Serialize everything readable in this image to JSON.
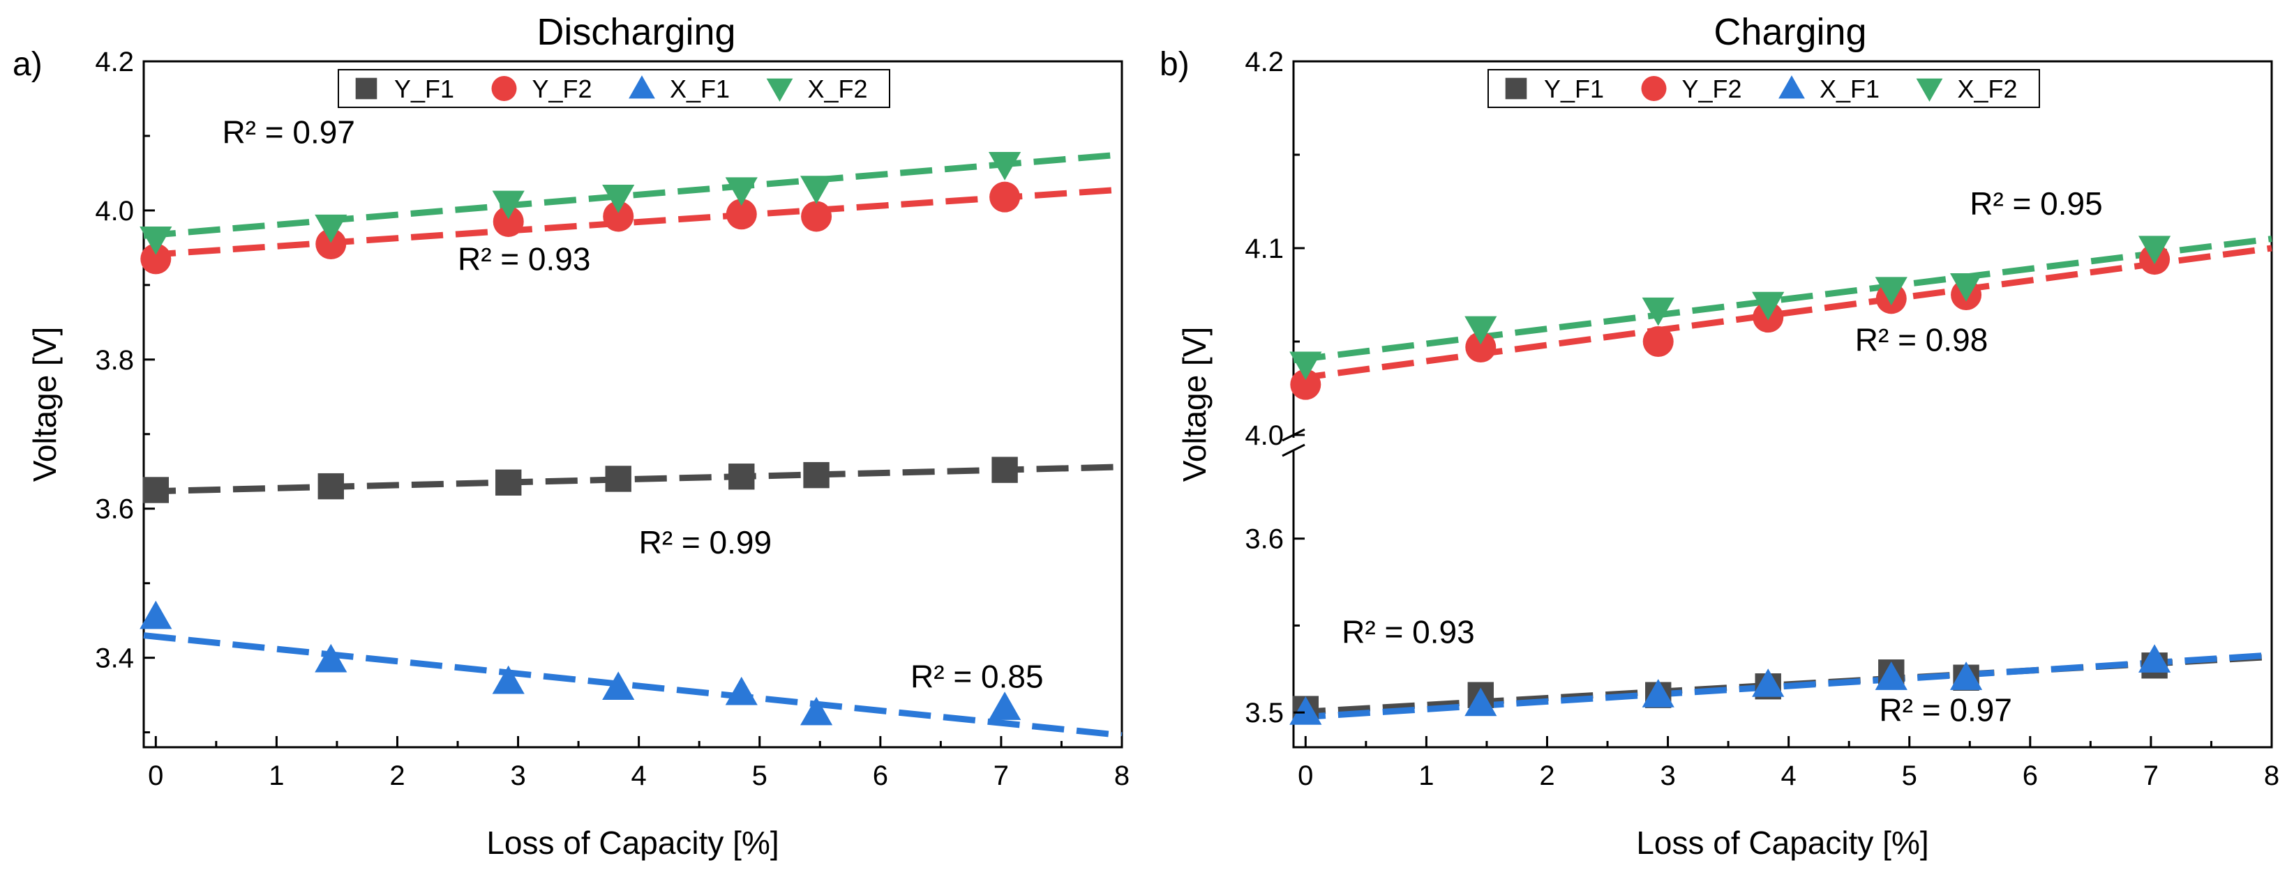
{
  "chart_data": [
    {
      "type": "scatter",
      "panel_label": "a)",
      "title": "Discharging",
      "xlabel": "Loss of Capacity [%]",
      "ylabel": "Voltage [V]",
      "xlim": [
        -0.1,
        8
      ],
      "ylim": [
        3.28,
        4.2
      ],
      "xticks": [
        0,
        1,
        2,
        3,
        4,
        5,
        6,
        7,
        8
      ],
      "xtick_labels": [
        "0",
        "1",
        "2",
        "3",
        "4",
        "5",
        "6",
        "7",
        "8"
      ],
      "yticks": [
        3.4,
        3.6,
        3.8,
        4.0,
        4.2
      ],
      "ytick_labels": [
        "3.4",
        "3.6",
        "3.8",
        "4.0",
        "4.2"
      ],
      "legend_position": "top-center",
      "series": [
        {
          "name": "Y_F1",
          "marker": "square",
          "color": "#4a4a4a",
          "x": [
            0,
            1.45,
            2.92,
            3.83,
            4.85,
            5.47,
            7.03
          ],
          "y": [
            3.625,
            3.63,
            3.635,
            3.64,
            3.643,
            3.645,
            3.652
          ],
          "fit": [
            [
              -0.1,
              3.623
            ],
            [
              8,
              3.656
            ]
          ]
        },
        {
          "name": "Y_F2",
          "marker": "circle",
          "color": "#e8403f",
          "x": [
            0,
            1.45,
            2.92,
            3.83,
            4.85,
            5.47,
            7.03
          ],
          "y": [
            3.935,
            3.955,
            3.985,
            3.992,
            3.995,
            3.992,
            4.018
          ],
          "fit": [
            [
              -0.1,
              3.94
            ],
            [
              8,
              4.028
            ]
          ]
        },
        {
          "name": "X_F1",
          "marker": "triangle-up",
          "color": "#2a78d8",
          "x": [
            0,
            1.45,
            2.92,
            3.83,
            4.85,
            5.47,
            7.03
          ],
          "y": [
            3.455,
            3.397,
            3.368,
            3.36,
            3.353,
            3.326,
            3.333
          ],
          "fit": [
            [
              -0.1,
              3.43
            ],
            [
              8,
              3.296
            ]
          ]
        },
        {
          "name": "X_F2",
          "marker": "triangle-down",
          "color": "#3dab6c",
          "x": [
            0,
            1.45,
            2.92,
            3.83,
            4.85,
            5.47,
            7.03
          ],
          "y": [
            3.962,
            3.978,
            4.01,
            4.018,
            4.028,
            4.03,
            4.062
          ],
          "fit": [
            [
              -0.1,
              3.966
            ],
            [
              8,
              4.075
            ]
          ]
        }
      ],
      "annotations": [
        {
          "text": "R² = 0.97",
          "x": 1.1,
          "y": 4.09
        },
        {
          "text": "R² = 0.93",
          "x": 3.05,
          "y": 3.92
        },
        {
          "text": "R² = 0.99",
          "x": 4.55,
          "y": 3.54
        },
        {
          "text": "R² = 0.85",
          "x": 6.8,
          "y": 3.36
        }
      ]
    },
    {
      "type": "scatter",
      "panel_label": "b)",
      "title": "Charging",
      "xlabel": "Loss of Capacity [%]",
      "ylabel": "Voltage [V]",
      "xlim": [
        -0.1,
        8
      ],
      "y_axis_break": true,
      "upper_ylim": [
        4.0,
        4.2
      ],
      "lower_ylim": [
        3.48,
        3.65
      ],
      "xticks": [
        0,
        1,
        2,
        3,
        4,
        5,
        6,
        7,
        8
      ],
      "xtick_labels": [
        "0",
        "1",
        "2",
        "3",
        "4",
        "5",
        "6",
        "7",
        "8"
      ],
      "yticks_upper": [
        4.0,
        4.1,
        4.2
      ],
      "ytick_labels_upper": [
        "4.0",
        "4.1",
        "4.2"
      ],
      "yticks_lower": [
        3.5,
        3.6
      ],
      "ytick_labels_lower": [
        "3.5",
        "3.6"
      ],
      "legend_position": "top-center",
      "series": [
        {
          "name": "Y_F1",
          "marker": "square",
          "color": "#4a4a4a",
          "x": [
            0,
            1.45,
            2.92,
            3.83,
            4.85,
            5.47,
            7.03
          ],
          "y": [
            3.502,
            3.51,
            3.51,
            3.515,
            3.523,
            3.52,
            3.527
          ],
          "fit": [
            [
              -0.1,
              3.5
            ],
            [
              8,
              3.532
            ]
          ]
        },
        {
          "name": "Y_F2",
          "marker": "circle",
          "color": "#e8403f",
          "x": [
            0,
            1.45,
            2.92,
            3.83,
            4.85,
            5.47,
            7.03
          ],
          "y": [
            4.027,
            4.047,
            4.05,
            4.063,
            4.073,
            4.075,
            4.094
          ],
          "fit": [
            [
              -0.1,
              4.03
            ],
            [
              8,
              4.1
            ]
          ]
        },
        {
          "name": "X_F1",
          "marker": "triangle-up",
          "color": "#2a78d8",
          "x": [
            0,
            1.45,
            2.92,
            3.83,
            4.85,
            5.47,
            7.03
          ],
          "y": [
            3.5,
            3.505,
            3.51,
            3.516,
            3.52,
            3.52,
            3.53
          ],
          "fit": [
            [
              -0.1,
              3.497
            ],
            [
              8,
              3.533
            ]
          ]
        },
        {
          "name": "X_F2",
          "marker": "triangle-down",
          "color": "#3dab6c",
          "x": [
            0,
            1.45,
            2.92,
            3.83,
            4.85,
            5.47,
            7.03
          ],
          "y": [
            4.038,
            4.057,
            4.067,
            4.07,
            4.078,
            4.08,
            4.1
          ],
          "fit": [
            [
              -0.1,
              4.04
            ],
            [
              8,
              4.105
            ]
          ]
        }
      ],
      "annotations": [
        {
          "text": "R² = 0.95",
          "x": 6.05,
          "y": 4.118,
          "segment": "upper"
        },
        {
          "text": "R² = 0.98",
          "x": 5.1,
          "y": 4.045,
          "segment": "upper"
        },
        {
          "text": "R² = 0.93",
          "x": 0.85,
          "y": 3.54,
          "segment": "lower"
        },
        {
          "text": "R² = 0.97",
          "x": 5.3,
          "y": 3.495,
          "segment": "lower"
        }
      ]
    }
  ]
}
